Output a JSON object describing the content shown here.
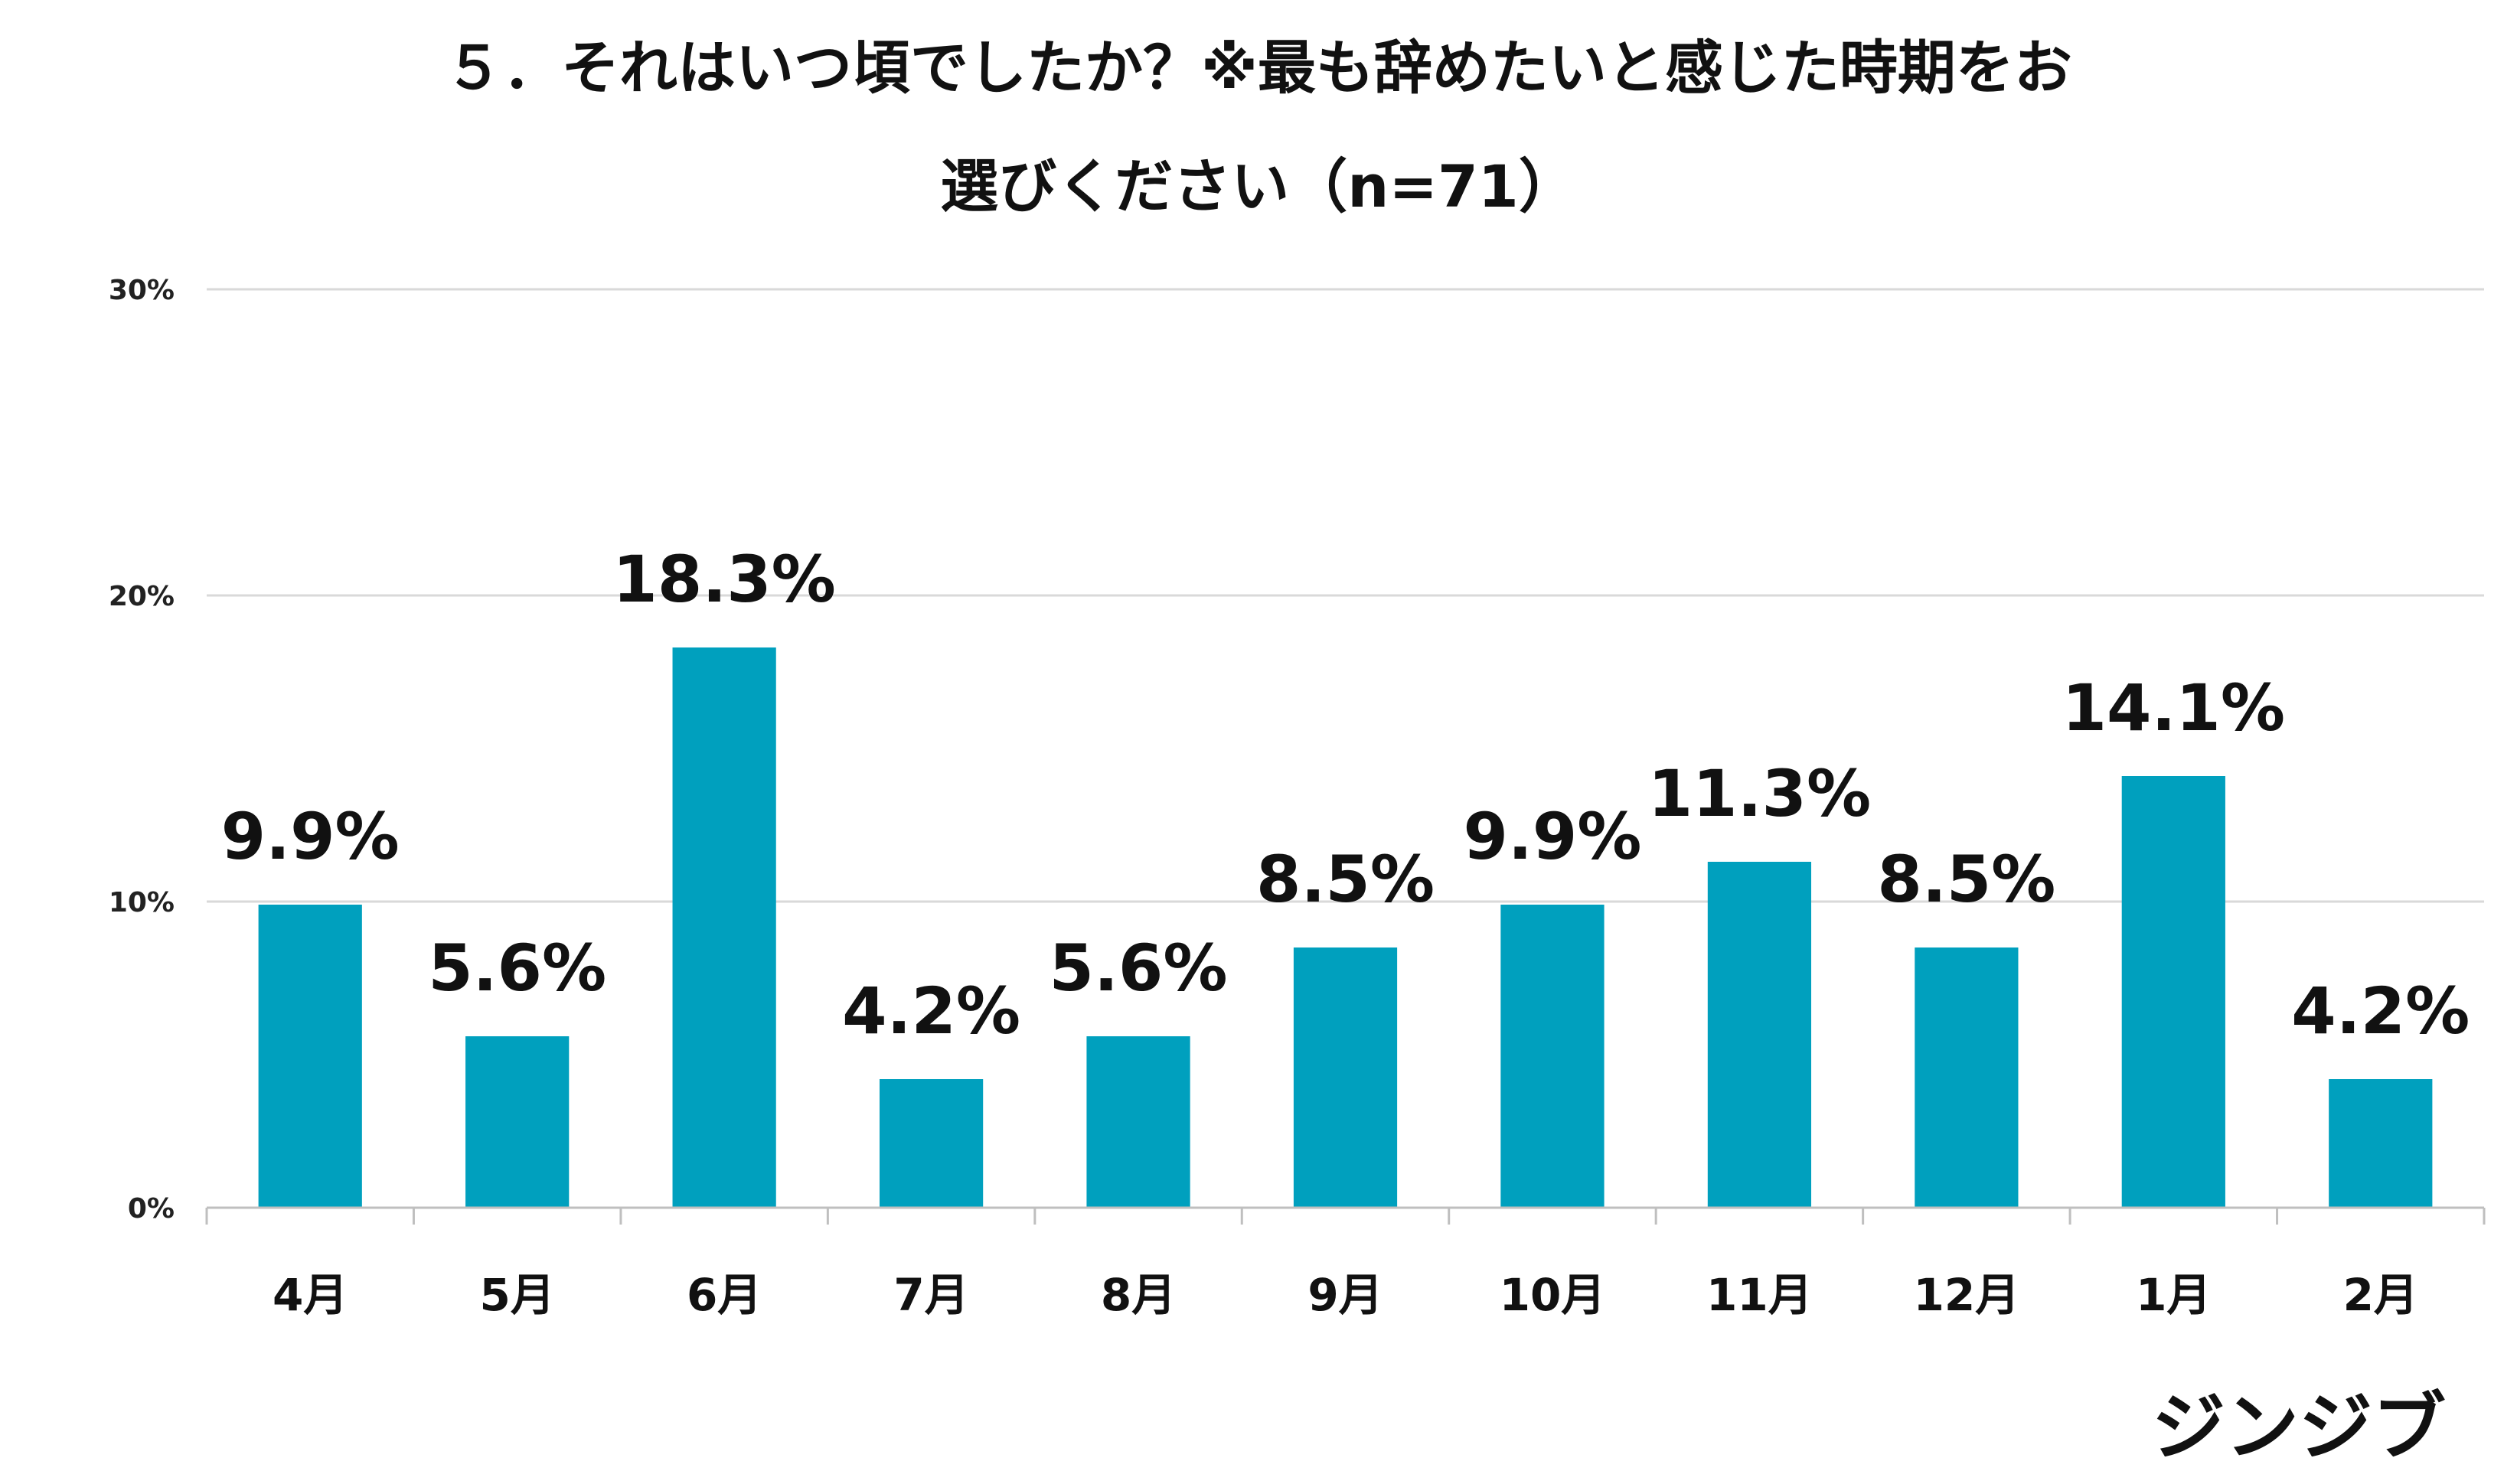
{
  "chart_data": {
    "type": "bar",
    "title_lines": [
      "５．それはいつ頃でしたか？※最も辞めたいと感じた時期をお",
      "選びください（n=71）"
    ],
    "categories": [
      "4月",
      "5月",
      "6月",
      "7月",
      "8月",
      "9月",
      "10月",
      "11月",
      "12月",
      "1月",
      "2月"
    ],
    "values": [
      9.9,
      5.6,
      18.3,
      4.2,
      5.6,
      8.5,
      9.9,
      11.3,
      8.5,
      14.1,
      4.2
    ],
    "data_labels": [
      "9.9%",
      "5.6%",
      "18.3%",
      "4.2%",
      "5.6%",
      "8.5%",
      "9.9%",
      "11.3%",
      "8.5%",
      "14.1%",
      "4.2%"
    ],
    "ylim": [
      0,
      30
    ],
    "yticks": [
      0,
      10,
      20,
      30
    ],
    "ytick_labels": [
      "0%",
      "10%",
      "20%",
      "30%"
    ],
    "grid": true,
    "bar_color": "#00a0be",
    "grid_color": "#d9d9d9"
  },
  "logo_text": "ジンジブ"
}
